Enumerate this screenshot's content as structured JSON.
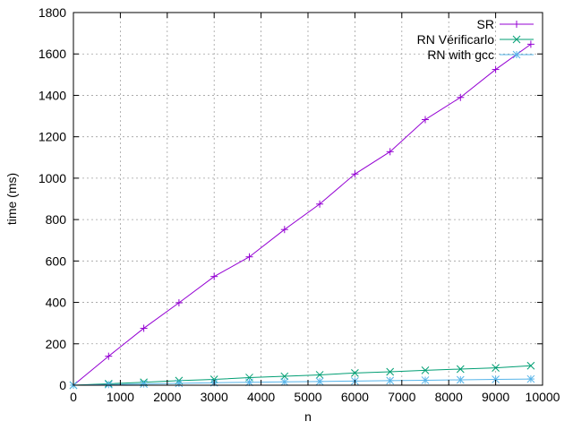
{
  "chart_data": {
    "type": "line",
    "title": "",
    "xlabel": "n",
    "ylabel": "time (ms)",
    "xlim": [
      0,
      10000
    ],
    "ylim": [
      0,
      1800
    ],
    "x_ticks": [
      0,
      1000,
      2000,
      3000,
      4000,
      5000,
      6000,
      7000,
      8000,
      9000,
      10000
    ],
    "y_ticks": [
      0,
      200,
      400,
      600,
      800,
      1000,
      1200,
      1400,
      1600,
      1800
    ],
    "grid": true,
    "legend_position": "top-right",
    "x": [
      0,
      750,
      1500,
      2250,
      3000,
      3750,
      4500,
      5250,
      6000,
      6750,
      7500,
      8250,
      9000,
      9750
    ],
    "series": [
      {
        "name": "SR",
        "color": "#9400d3",
        "marker": "plus",
        "values": [
          0,
          140,
          275,
          398,
          525,
          620,
          752,
          875,
          1020,
          1128,
          1283,
          1390,
          1525,
          1647
        ]
      },
      {
        "name": "RN Vérificarlo",
        "color": "#009e73",
        "marker": "cross",
        "values": [
          0,
          7,
          14,
          22,
          28,
          37,
          43,
          50,
          59,
          65,
          72,
          78,
          84,
          94
        ]
      },
      {
        "name": "RN with gcc",
        "color": "#56b4e9",
        "marker": "star",
        "values": [
          0,
          3,
          6,
          9,
          12,
          14,
          16,
          18,
          20,
          22,
          24,
          26,
          28,
          30
        ]
      }
    ]
  }
}
